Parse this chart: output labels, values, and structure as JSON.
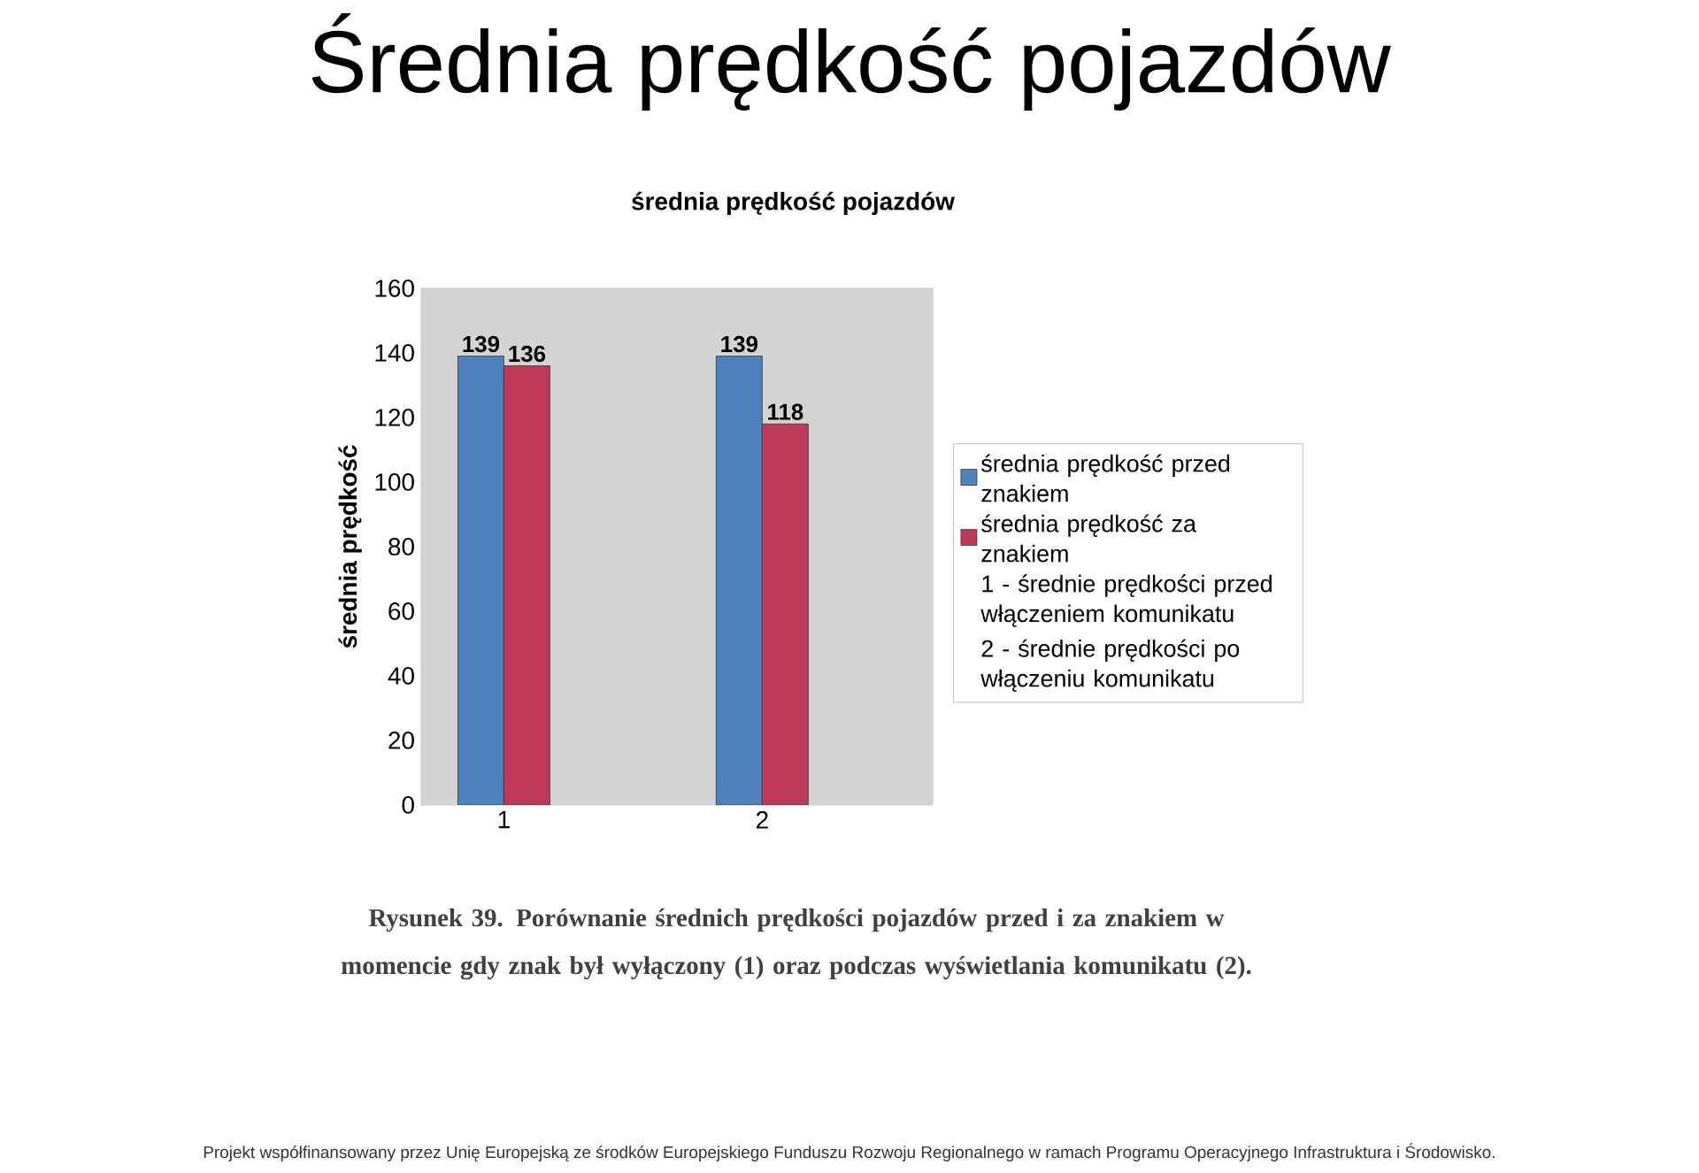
{
  "chart_data": {
    "type": "bar",
    "title": "Średnia prędkość pojazdów",
    "subtitle": "średnia prędkość pojazdów",
    "ylabel": "średnia prędkość",
    "categories": [
      "1",
      "2"
    ],
    "series": [
      {
        "name": "średnia prędkość przed znakiem",
        "color": "#4f81bd",
        "values": [
          139,
          139
        ]
      },
      {
        "name": "średnia prędkość za znakiem",
        "color": "#c0395a",
        "values": [
          136,
          118
        ]
      }
    ],
    "ylim": [
      0,
      160
    ],
    "yticks": [
      0,
      20,
      40,
      60,
      80,
      100,
      120,
      140,
      160
    ],
    "data_labels": true,
    "legend": "right",
    "annotations": [
      "1 - średnie prędkości przed włączeniem komunikatu",
      "2 - średnie prędkości po włączeniu komunikatu",
      "Rysunek 39. Porównanie średnich prędkości pojazdów przed i za znakiem w momencie gdy znak był wyłączony (1) oraz podczas wyświetlania komunikatu (2).",
      "Projekt współfinansowany przez Unię Europejską ze środków Europejskiego Funduszu Rozwoju Regionalnego w ramach Programu Operacyjnego Infrastruktura i Środowisko."
    ]
  }
}
